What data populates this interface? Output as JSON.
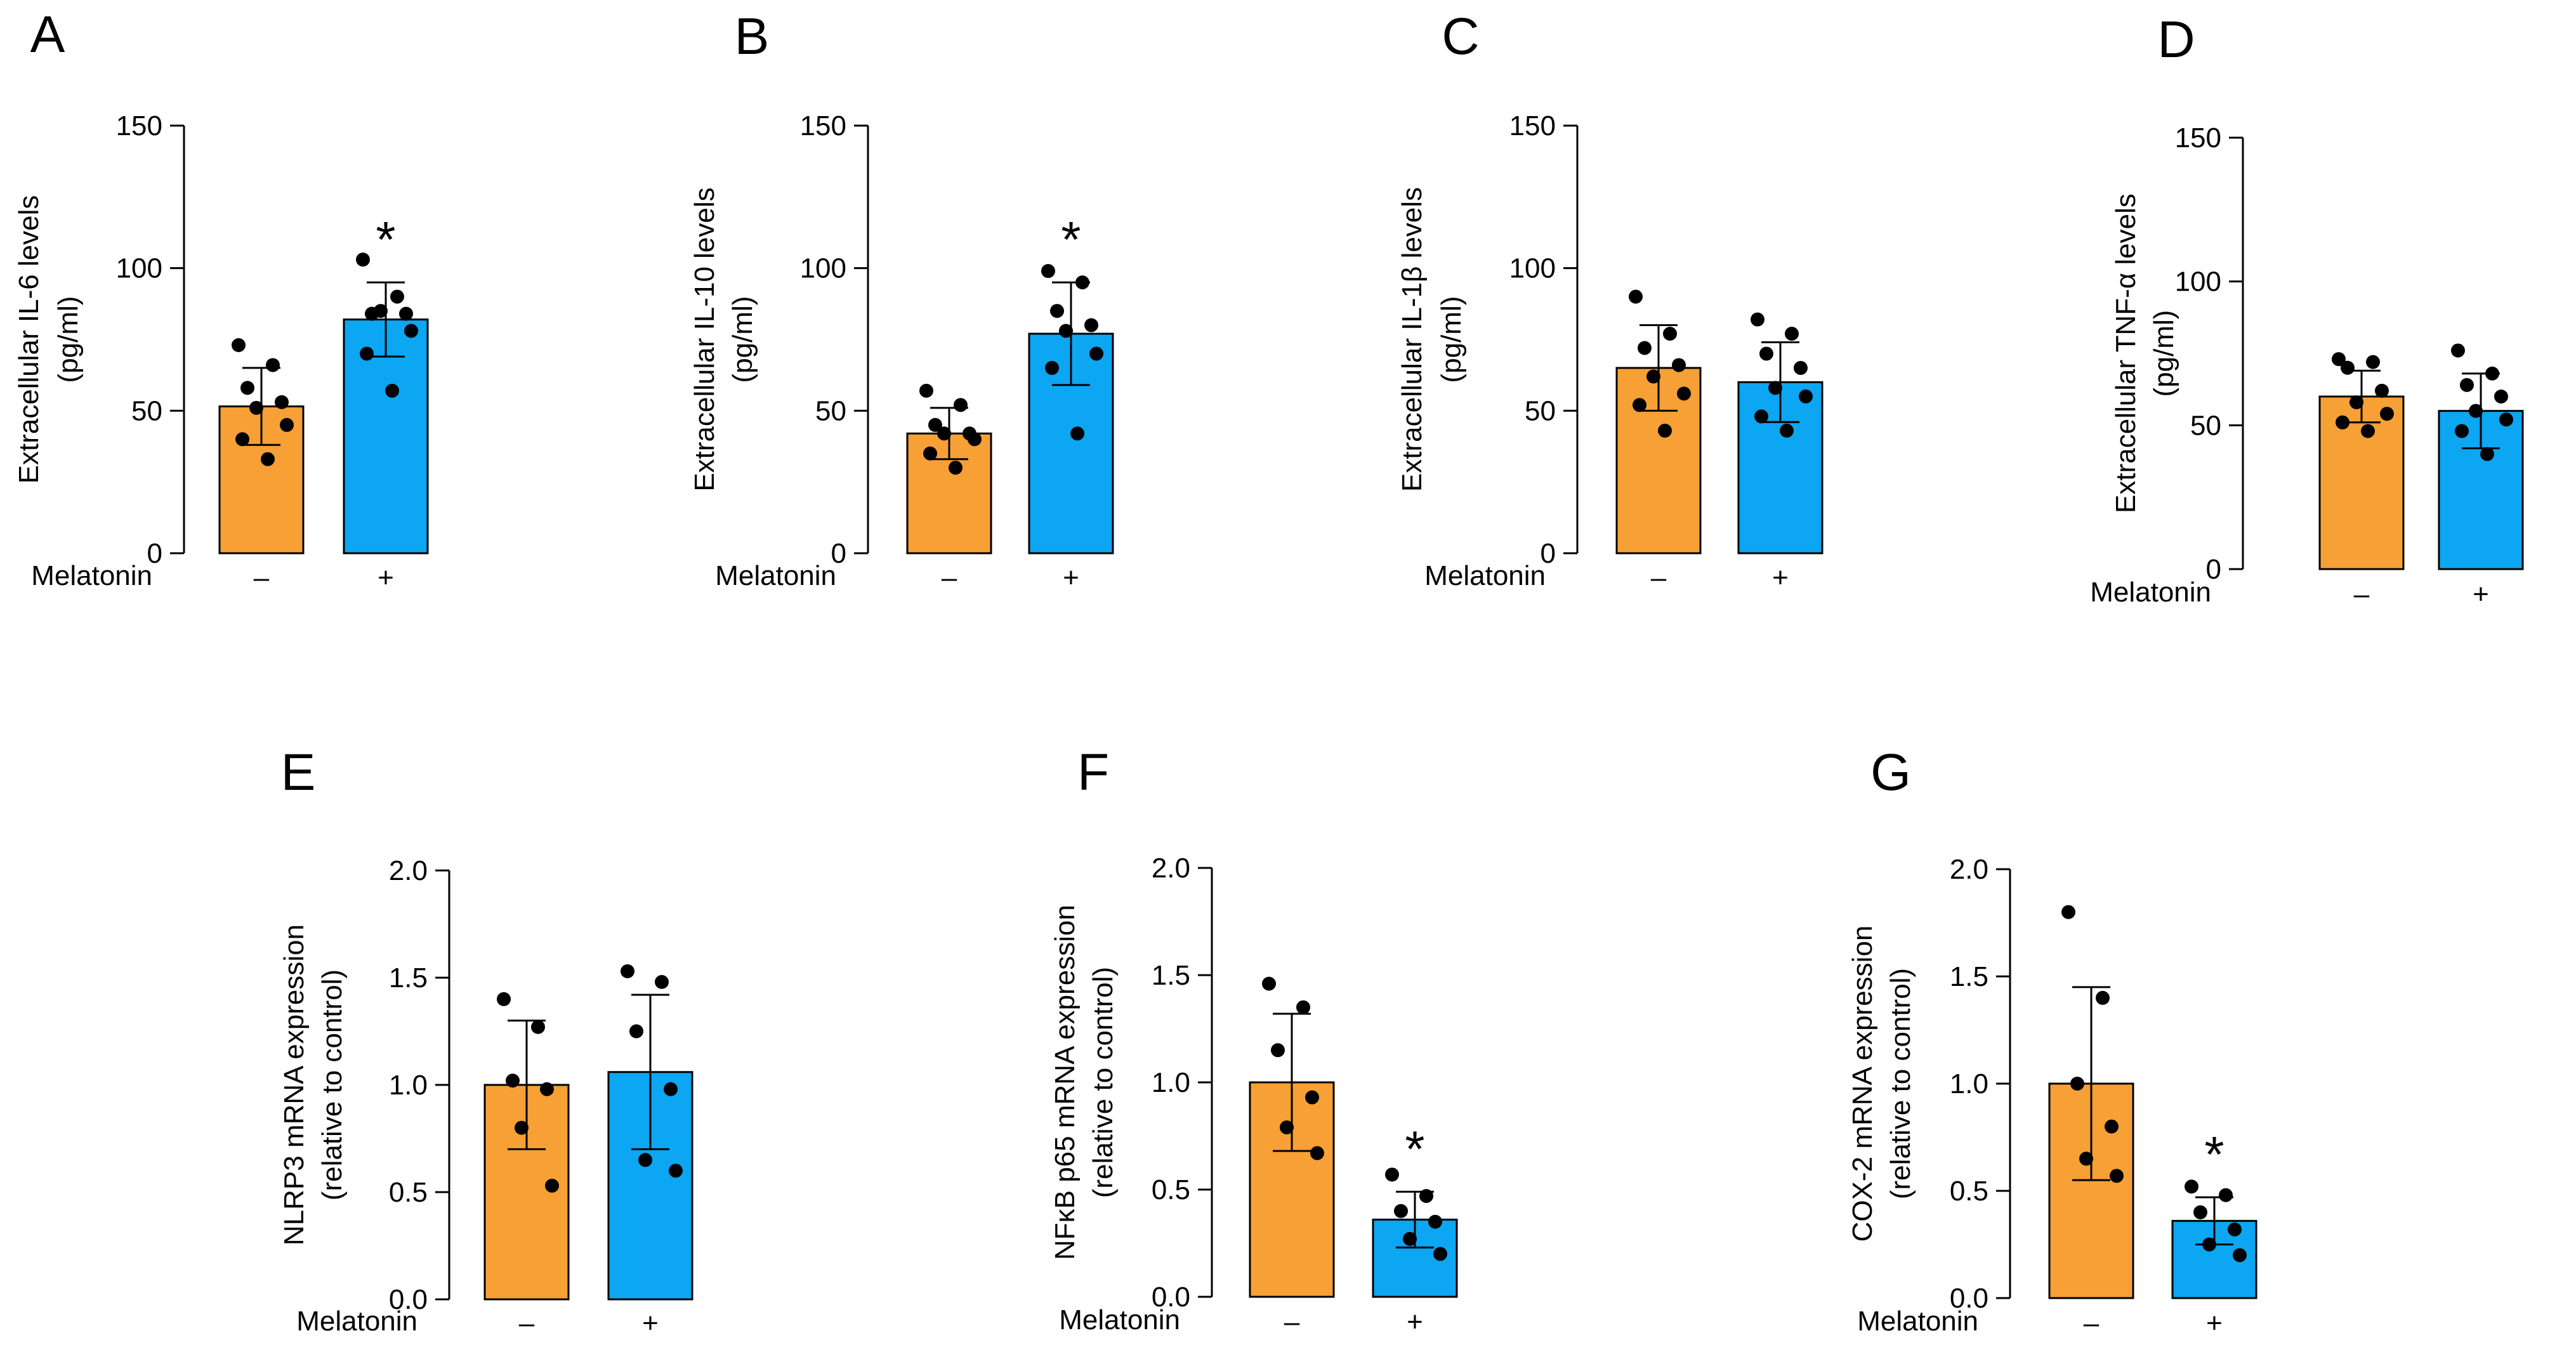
{
  "chart_data": [
    {
      "type": "bar",
      "panel": "A",
      "ylabel_lines": [
        "Extracellular IL-6 levels",
        "(pg/ml)"
      ],
      "xlabel": "Melatonin",
      "categories": [
        "–",
        "+"
      ],
      "ylim": [
        0,
        150
      ],
      "yticks": [
        0,
        50,
        100,
        150
      ],
      "ytick_labels": [
        "0",
        "50",
        "100",
        "150"
      ],
      "series": [
        {
          "name": "extracellular IL-6",
          "values": [
            51.5,
            82
          ],
          "errors": [
            13.5,
            13
          ],
          "colors": [
            "#F7A035",
            "#0CA6F2"
          ],
          "points": [
            [
              73,
              66,
              58,
              53,
              51,
              45,
              40,
              33
            ],
            [
              103,
              90,
              84,
              84,
              85,
              78,
              70,
              57
            ]
          ]
        }
      ],
      "significance": [
        "",
        "*"
      ]
    },
    {
      "type": "bar",
      "panel": "B",
      "ylabel_lines": [
        "Extracellular IL-10 levels",
        "(pg/ml)"
      ],
      "xlabel": "Melatonin",
      "categories": [
        "–",
        "+"
      ],
      "ylim": [
        0,
        150
      ],
      "yticks": [
        0,
        50,
        100,
        150
      ],
      "ytick_labels": [
        "0",
        "50",
        "100",
        "150"
      ],
      "series": [
        {
          "name": "extracellular IL-10",
          "values": [
            42,
            77
          ],
          "errors": [
            9,
            18
          ],
          "colors": [
            "#F7A035",
            "#0CA6F2"
          ],
          "points": [
            [
              57,
              52,
              45,
              42,
              42,
              40,
              35,
              30
            ],
            [
              99,
              95,
              85,
              80,
              78,
              70,
              65,
              42
            ]
          ]
        }
      ],
      "significance": [
        "",
        "*"
      ]
    },
    {
      "type": "bar",
      "panel": "C",
      "ylabel_lines": [
        "Extracellular IL-1β levels",
        "(pg/ml)"
      ],
      "xlabel": "Melatonin",
      "categories": [
        "–",
        "+"
      ],
      "ylim": [
        0,
        150
      ],
      "yticks": [
        0,
        50,
        100,
        150
      ],
      "ytick_labels": [
        "0",
        "50",
        "100",
        "150"
      ],
      "series": [
        {
          "name": "extracellular IL-1β",
          "values": [
            65,
            60
          ],
          "errors": [
            15,
            14
          ],
          "colors": [
            "#F7A035",
            "#0CA6F2"
          ],
          "points": [
            [
              90,
              77,
              72,
              66,
              62,
              56,
              52,
              43
            ],
            [
              82,
              77,
              70,
              65,
              58,
              55,
              48,
              43
            ]
          ]
        }
      ],
      "significance": [
        "",
        ""
      ]
    },
    {
      "type": "bar",
      "panel": "D",
      "ylabel_lines": [
        "Extracellular TNF-α levels",
        "(pg/ml)"
      ],
      "xlabel": "Melatonin",
      "categories": [
        "–",
        "+"
      ],
      "ylim": [
        0,
        150
      ],
      "yticks": [
        0,
        50,
        100,
        150
      ],
      "ytick_labels": [
        "0",
        "50",
        "100",
        "150"
      ],
      "series": [
        {
          "name": "extracellular TNF-α",
          "values": [
            60,
            55
          ],
          "errors": [
            9,
            13
          ],
          "colors": [
            "#F7A035",
            "#0CA6F2"
          ],
          "points": [
            [
              73,
              72,
              70,
              62,
              58,
              54,
              51,
              48
            ],
            [
              76,
              68,
              64,
              60,
              55,
              52,
              48,
              40
            ]
          ]
        }
      ],
      "significance": [
        "",
        ""
      ]
    },
    {
      "type": "bar",
      "panel": "E",
      "ylabel_lines": [
        "NLRP3 mRNA expression",
        "(relative to control)"
      ],
      "xlabel": "Melatonin",
      "categories": [
        "–",
        "+"
      ],
      "ylim": [
        0,
        2.0
      ],
      "yticks": [
        0,
        0.5,
        1.0,
        1.5,
        2.0
      ],
      "ytick_labels": [
        "0.0",
        "0.5",
        "1.0",
        "1.5",
        "2.0"
      ],
      "series": [
        {
          "name": "NLRP3 mRNA",
          "values": [
            1.0,
            1.06
          ],
          "errors": [
            0.3,
            0.36
          ],
          "colors": [
            "#F7A035",
            "#0CA6F2"
          ],
          "points": [
            [
              1.4,
              1.27,
              1.02,
              0.98,
              0.8,
              0.53
            ],
            [
              1.53,
              1.48,
              1.25,
              0.98,
              0.65,
              0.6
            ]
          ]
        }
      ],
      "significance": [
        "",
        ""
      ]
    },
    {
      "type": "bar",
      "panel": "F",
      "ylabel_lines": [
        "NFκB p65 mRNA expression",
        "(relative to control)"
      ],
      "xlabel": "Melatonin",
      "categories": [
        "–",
        "+"
      ],
      "ylim": [
        0,
        2.0
      ],
      "yticks": [
        0,
        0.5,
        1.0,
        1.5,
        2.0
      ],
      "ytick_labels": [
        "0.0",
        "0.5",
        "1.0",
        "1.5",
        "2.0"
      ],
      "series": [
        {
          "name": "NFκB p65 mRNA",
          "values": [
            1.0,
            0.36
          ],
          "errors": [
            0.32,
            0.13
          ],
          "colors": [
            "#F7A035",
            "#0CA6F2"
          ],
          "points": [
            [
              1.46,
              1.35,
              1.15,
              0.93,
              0.79,
              0.67
            ],
            [
              0.57,
              0.47,
              0.4,
              0.35,
              0.27,
              0.2
            ]
          ]
        }
      ],
      "significance": [
        "",
        "*"
      ]
    },
    {
      "type": "bar",
      "panel": "G",
      "ylabel_lines": [
        "COX-2 mRNA expression",
        "(relative to control)"
      ],
      "xlabel": "Melatonin",
      "categories": [
        "–",
        "+"
      ],
      "ylim": [
        0,
        2.0
      ],
      "yticks": [
        0,
        0.5,
        1.0,
        1.5,
        2.0
      ],
      "ytick_labels": [
        "0.0",
        "0.5",
        "1.0",
        "1.5",
        "2.0"
      ],
      "series": [
        {
          "name": "COX-2 mRNA",
          "values": [
            1.0,
            0.36
          ],
          "errors": [
            0.45,
            0.11
          ],
          "colors": [
            "#F7A035",
            "#0CA6F2"
          ],
          "points": [
            [
              1.8,
              1.4,
              1.0,
              0.8,
              0.65,
              0.57
            ],
            [
              0.52,
              0.48,
              0.4,
              0.32,
              0.25,
              0.2
            ]
          ]
        }
      ],
      "significance": [
        "",
        "*"
      ]
    }
  ]
}
